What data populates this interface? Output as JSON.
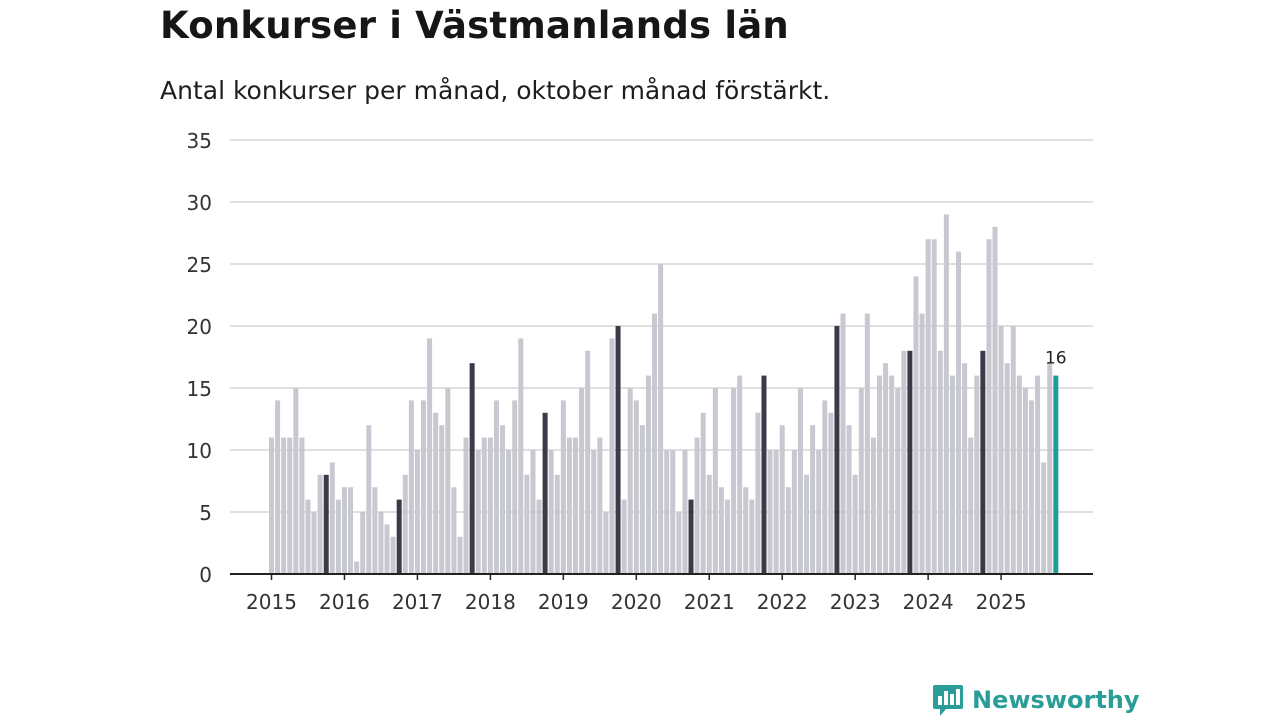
{
  "header": {
    "title": "Konkurser i Västmanlands län",
    "subtitle": "Antal konkurser per månad, oktober månad förstärkt."
  },
  "brand": {
    "name": "Newsworthy"
  },
  "colors": {
    "bar": "#c8c8d0",
    "bar_october": "#3a3a48",
    "bar_latest": "#1a9e96",
    "grid": "#d6d6d6",
    "axis": "#222222",
    "brand": "#2a9d98"
  },
  "chart_data": {
    "type": "bar",
    "title": "Konkurser i Västmanlands län",
    "subtitle": "Antal konkurser per månad, oktober månad förstärkt.",
    "xlabel": "",
    "ylabel": "",
    "ylim": [
      0,
      35
    ],
    "yticks": [
      0,
      5,
      10,
      15,
      20,
      25,
      30,
      35
    ],
    "grid": true,
    "start": "2015-01",
    "highlight_month": 10,
    "year_labels": [
      "2015",
      "2016",
      "2017",
      "2018",
      "2019",
      "2020",
      "2021",
      "2022",
      "2023",
      "2024",
      "2025"
    ],
    "values": [
      11,
      14,
      11,
      11,
      15,
      11,
      6,
      5,
      8,
      8,
      9,
      6,
      7,
      7,
      1,
      5,
      12,
      7,
      5,
      4,
      3,
      6,
      8,
      14,
      10,
      14,
      19,
      13,
      12,
      15,
      7,
      3,
      11,
      17,
      10,
      11,
      11,
      14,
      12,
      10,
      14,
      19,
      8,
      10,
      6,
      13,
      10,
      8,
      14,
      11,
      11,
      15,
      18,
      10,
      11,
      5,
      19,
      20,
      6,
      15,
      14,
      12,
      16,
      21,
      25,
      10,
      10,
      5,
      10,
      6,
      11,
      13,
      8,
      15,
      7,
      6,
      15,
      16,
      7,
      6,
      13,
      16,
      10,
      10,
      12,
      7,
      10,
      15,
      8,
      12,
      10,
      14,
      13,
      20,
      21,
      12,
      8,
      15,
      21,
      11,
      16,
      17,
      16,
      15,
      18,
      18,
      24,
      21,
      27,
      27,
      18,
      29,
      16,
      26,
      17,
      11,
      16,
      18,
      27,
      28,
      20,
      17,
      20,
      16,
      15,
      14,
      16,
      9,
      17,
      16
    ],
    "latest_label": "16"
  }
}
